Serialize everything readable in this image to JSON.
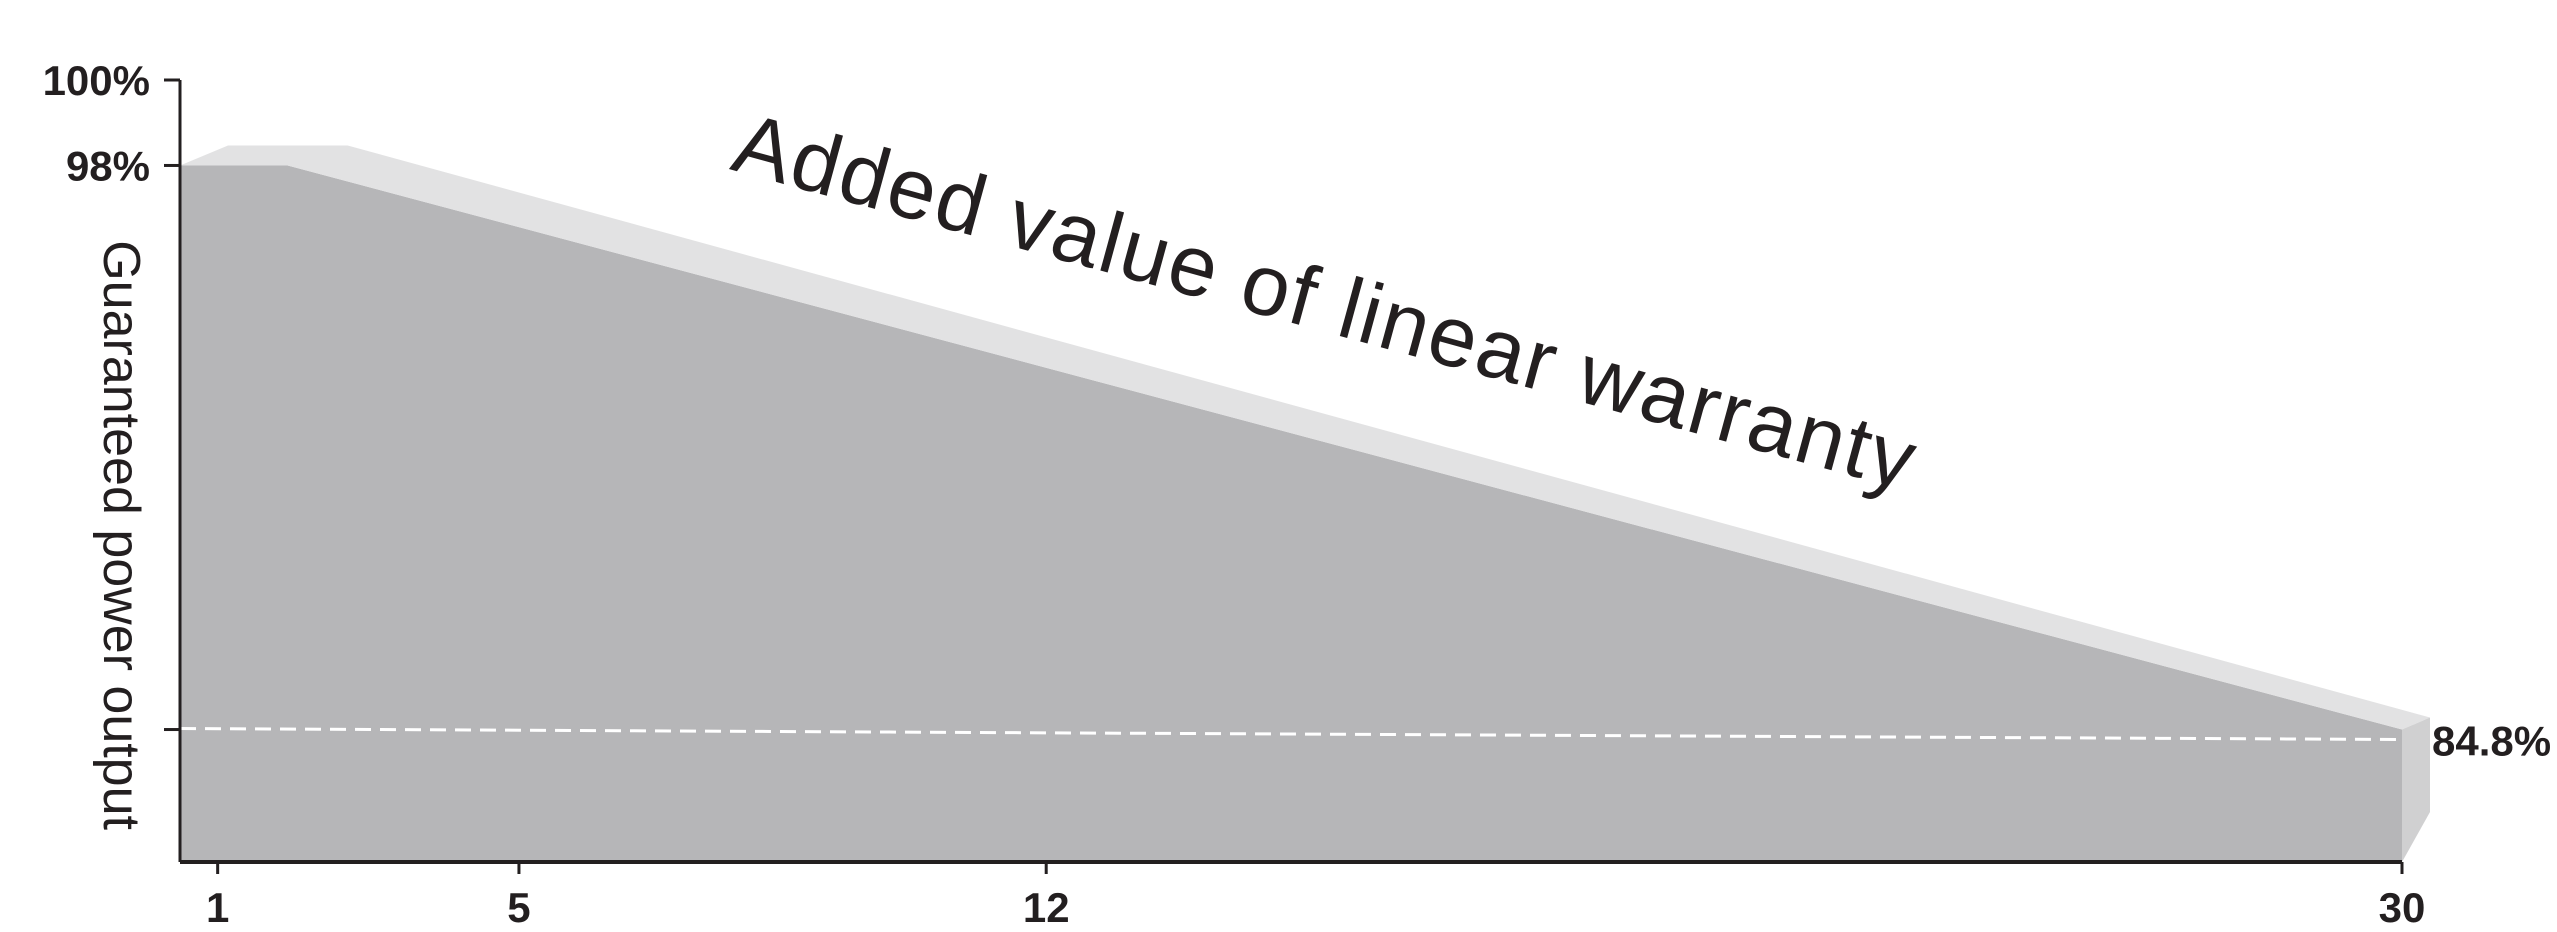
{
  "chart_data": {
    "type": "area",
    "title": "",
    "xlabel": "",
    "ylabel": "Guaranteed power output",
    "x_ticks": [
      1,
      5,
      12,
      30
    ],
    "x_tick_labels": [
      "1",
      "5",
      "12",
      "30"
    ],
    "y_ticks": [
      {
        "value": 100,
        "label": "100%"
      },
      {
        "value": 98,
        "label": "98%"
      },
      {
        "value": 84.8,
        "label": ""
      }
    ],
    "guaranteed_line": {
      "points": [
        [
          1,
          98
        ],
        [
          30,
          84.8
        ]
      ]
    },
    "reference_line": {
      "value": 84.8,
      "style": "dashed",
      "label": "84.8%"
    },
    "annotation": "Added value of linear warranty",
    "xlim": [
      0.5,
      30
    ],
    "ylim": [
      81.7,
      100
    ],
    "grid": false,
    "legend": "none",
    "colors": {
      "fill": "#b6b6b8",
      "bevel_top": "#e2e2e3",
      "bevel_side": "#d0d0d1",
      "axis": "#231f20",
      "text": "#231f20",
      "dashed": "#ffffff"
    }
  }
}
